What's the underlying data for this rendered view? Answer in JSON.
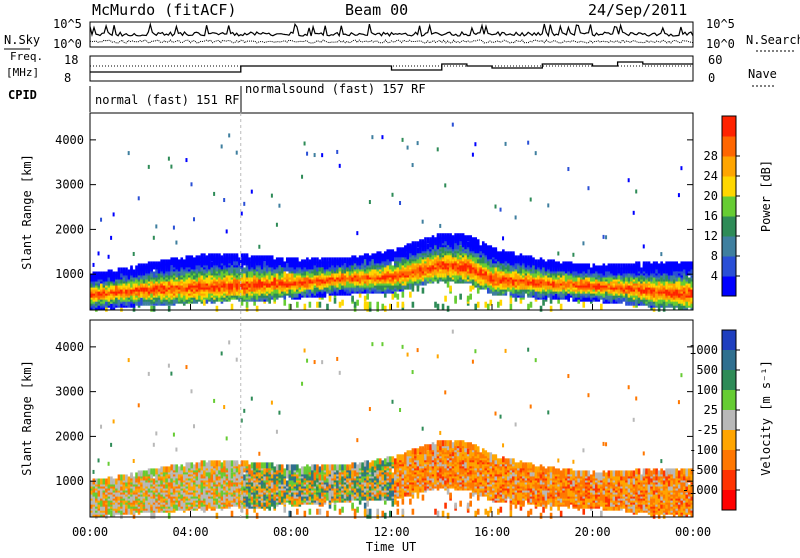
{
  "header": {
    "station": "McMurdo (fitACF)",
    "beam": "Beam 00",
    "date": "24/Sep/2011"
  },
  "nsky_panel": {
    "left_label": "N.Sky",
    "right_label": "N.Search",
    "left_ticks": [
      "10^5",
      "10^0"
    ],
    "right_ticks": [
      "10^5",
      "10^0"
    ]
  },
  "freq_panel": {
    "left_label_1": "Freq.",
    "left_label_2": "[MHz]",
    "left_ticks": [
      "18",
      "8"
    ],
    "right_ticks": [
      "60",
      "0"
    ],
    "right_label": "Nave"
  },
  "cpid": {
    "label": "CPID",
    "segments": [
      {
        "text": "normal (fast) 151 RF",
        "start_hour": 0,
        "end_hour": 6
      },
      {
        "text": "normalsound (fast) 157 RF",
        "start_hour": 6,
        "end_hour": 24
      }
    ]
  },
  "colors": {
    "power": [
      "#0000ff",
      "#2a4fd6",
      "#3f7f9f",
      "#2e8b57",
      "#66cc33",
      "#ffd700",
      "#ffa500",
      "#ff6600",
      "#ff2200"
    ],
    "velocity": [
      "#1f3fbf",
      "#2f6f8f",
      "#2e8b57",
      "#66cc33",
      "#b8b8b8",
      "#ffa500",
      "#ff7700",
      "#ff3300",
      "#ff0000"
    ]
  },
  "chart_data": [
    {
      "type": "heatmap",
      "name_hint": "power",
      "ylabel": "Slant Range [km]",
      "yticks": [
        1000,
        2000,
        3000,
        4000
      ],
      "ylim": [
        200,
        4600
      ],
      "xlim": [
        0,
        24
      ],
      "colorbar_label": "Power [dB]",
      "colorbar_ticks": [
        "4",
        "8",
        "12",
        "16",
        "20",
        "24",
        "28"
      ],
      "profile": [
        {
          "hour": 0,
          "range": 600
        },
        {
          "hour": 2,
          "range": 700
        },
        {
          "hour": 4,
          "range": 750
        },
        {
          "hour": 6,
          "range": 800
        },
        {
          "hour": 8,
          "range": 850
        },
        {
          "hour": 10,
          "range": 950
        },
        {
          "hour": 12,
          "range": 1000
        },
        {
          "hour": 14,
          "range": 1250
        },
        {
          "hour": 15,
          "range": 1200
        },
        {
          "hour": 16,
          "range": 950
        },
        {
          "hour": 18,
          "range": 850
        },
        {
          "hour": 20,
          "range": 800
        },
        {
          "hour": 22,
          "range": 700
        },
        {
          "hour": 24,
          "range": 600
        }
      ]
    },
    {
      "type": "heatmap",
      "name_hint": "velocity",
      "ylabel": "Slant Range [km]",
      "yticks": [
        1000,
        2000,
        3000,
        4000
      ],
      "ylim": [
        200,
        4600
      ],
      "xlim": [
        0,
        24
      ],
      "xticks": [
        "00:00",
        "04:00",
        "08:00",
        "12:00",
        "16:00",
        "20:00",
        "00:00"
      ],
      "xlabel": "Time UT",
      "colorbar_label": "Velocity [m s⁻¹]",
      "colorbar_ticks": [
        "1000",
        "500",
        "100",
        "25",
        "-25",
        "-100",
        "-500",
        "-1000"
      ]
    }
  ]
}
